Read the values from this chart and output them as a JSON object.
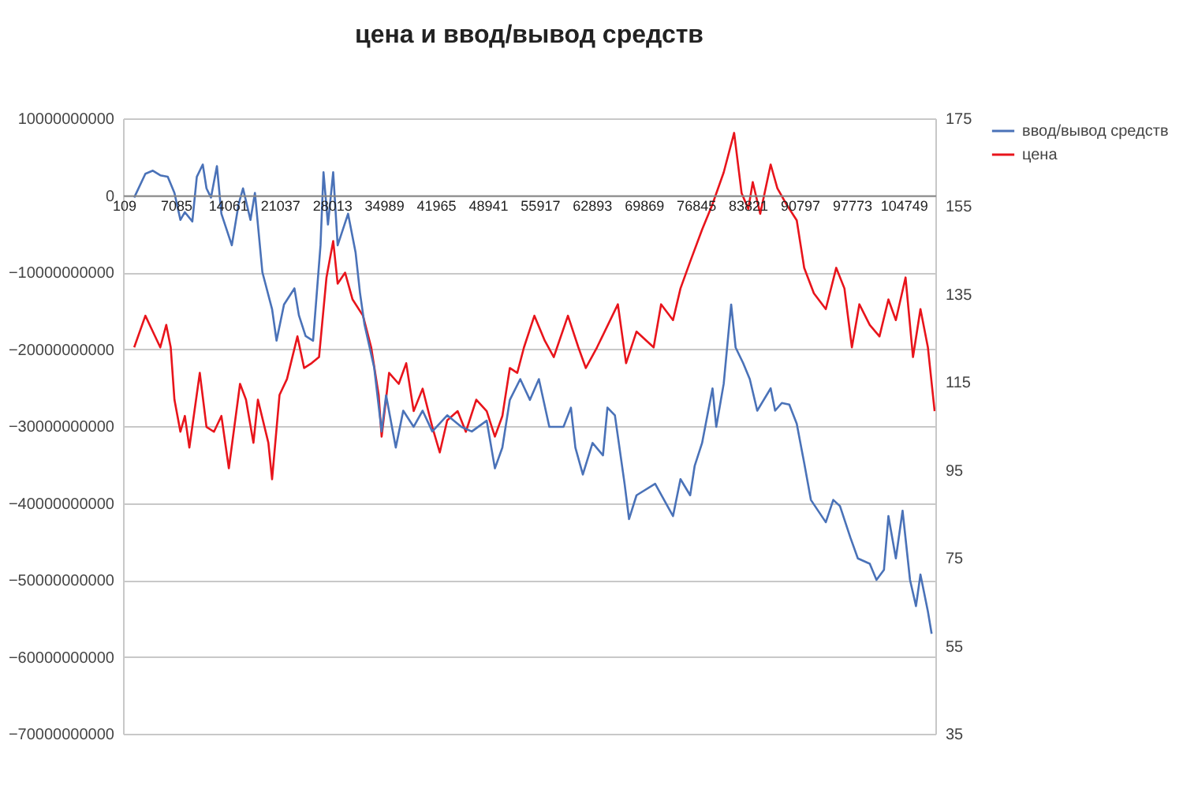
{
  "chart_data": {
    "type": "line",
    "title": "цена и ввод/вывод средств",
    "xlim": [
      1,
      109000
    ],
    "xticks": [
      109,
      7085,
      14061,
      21037,
      28013,
      34989,
      41965,
      48941,
      55917,
      62893,
      69869,
      76845,
      83821,
      90797,
      97773,
      104749
    ],
    "ylim": [
      -70000000000,
      10000000000
    ],
    "yticks": [
      10000000000,
      0,
      -10000000000,
      -20000000000,
      -30000000000,
      -40000000000,
      -50000000000,
      -60000000000,
      -70000000000
    ],
    "y2lim": [
      35,
      175
    ],
    "y2ticks": [
      35,
      55,
      75,
      95,
      115,
      135,
      155,
      175
    ],
    "grid": "y",
    "legend": "right",
    "series": [
      {
        "name": "ввод/вывод средств",
        "color": "#4a72b8",
        "x": [
          1500,
          3000,
          4000,
          5000,
          6000,
          6900,
          7700,
          8300,
          9300,
          9900,
          10700,
          11200,
          11800,
          12600,
          13200,
          14600,
          15500,
          16100,
          17100,
          17700,
          18700,
          20000,
          20600,
          21600,
          23000,
          23600,
          24500,
          25500,
          26500,
          26900,
          27500,
          28200,
          28800,
          30200,
          31200,
          31800,
          32400,
          33700,
          34700,
          35300,
          36600,
          37600,
          39000,
          40200,
          41500,
          43500,
          45400,
          46800,
          48800,
          49900,
          50900,
          51900,
          53300,
          54600,
          55800,
          57200,
          59100,
          60100,
          60700,
          61700,
          63000,
          64400,
          65000,
          66000,
          67300,
          67900,
          68900,
          71400,
          73800,
          74800,
          76100,
          76700,
          77700,
          79100,
          79600,
          80600,
          81200,
          81600,
          82200,
          83200,
          84100,
          85100,
          86900,
          87500,
          88400,
          89400,
          90400,
          91400,
          92300,
          94300,
          95300,
          96200,
          97600,
          98600,
          100200,
          101100,
          102100,
          102700,
          103700,
          104600,
          105600,
          106400,
          107000,
          108000,
          108500
        ],
        "values": [
          -300000000,
          2800000000,
          3200000000,
          2600000000,
          2400000000,
          300000000,
          -3200000000,
          -2200000000,
          -3400000000,
          2400000000,
          4000000000,
          900000000,
          -300000000,
          3800000000,
          -2400000000,
          -6500000000,
          -1200000000,
          900000000,
          -3200000000,
          300000000,
          -10000000000,
          -14800000000,
          -18900000000,
          -14200000000,
          -12100000000,
          -15600000000,
          -18300000000,
          -18900000000,
          -6500000000,
          3000000000,
          -3800000000,
          3000000000,
          -6500000000,
          -2400000000,
          -7400000000,
          -12700000000,
          -16800000000,
          -22400000000,
          -30700000000,
          -26000000000,
          -32800000000,
          -28000000000,
          -30100000000,
          -28000000000,
          -30700000000,
          -28600000000,
          -30100000000,
          -30700000000,
          -29300000000,
          -35500000000,
          -32800000000,
          -26600000000,
          -23900000000,
          -26600000000,
          -23900000000,
          -30100000000,
          -30100000000,
          -27600000000,
          -32800000000,
          -36300000000,
          -32200000000,
          -33800000000,
          -27600000000,
          -28600000000,
          -37500000000,
          -42100000000,
          -39000000000,
          -37500000000,
          -41700000000,
          -36900000000,
          -39000000000,
          -35200000000,
          -32200000000,
          -25100000000,
          -30100000000,
          -24500000000,
          -18300000000,
          -14200000000,
          -19800000000,
          -21800000000,
          -23900000000,
          -28000000000,
          -25100000000,
          -28000000000,
          -27000000000,
          -27200000000,
          -29700000000,
          -34800000000,
          -39600000000,
          -42500000000,
          -39600000000,
          -40400000000,
          -44500000000,
          -47200000000,
          -47900000000,
          -50000000000,
          -48700000000,
          -41700000000,
          -47200000000,
          -41000000000,
          -50000000000,
          -53400000000,
          -49300000000,
          -54100000000,
          -57000000000
        ]
      },
      {
        "name": "цена",
        "color": "#e8141b",
        "axis": "y2",
        "x": [
          1500,
          3000,
          4000,
          5000,
          5800,
          6400,
          6900,
          7700,
          8300,
          8900,
          10300,
          11200,
          12200,
          13200,
          14200,
          15700,
          16500,
          17500,
          18100,
          19500,
          20000,
          21000,
          22000,
          23400,
          24300,
          25300,
          26300,
          27300,
          28200,
          28800,
          29800,
          30800,
          32200,
          33300,
          34300,
          34700,
          35700,
          37000,
          38000,
          39000,
          40200,
          41500,
          42500,
          43500,
          44900,
          46000,
          47400,
          48800,
          49900,
          50900,
          51900,
          52900,
          53800,
          55200,
          56600,
          57800,
          59700,
          61100,
          62100,
          63600,
          66400,
          67500,
          68900,
          71200,
          72200,
          73800,
          74800,
          76100,
          77700,
          79100,
          80600,
          82000,
          83000,
          83900,
          84500,
          85500,
          86900,
          87800,
          89000,
          90400,
          91400,
          92700,
          94300,
          95700,
          96800,
          97800,
          98800,
          100200,
          101500,
          102700,
          103700,
          105000,
          106000,
          107000,
          108000,
          108900
        ],
        "values": [
          122.9,
          130.1,
          126.5,
          122.9,
          128.0,
          122.9,
          111.0,
          103.7,
          107.3,
          100.1,
          117.1,
          104.8,
          103.7,
          107.3,
          95.4,
          114.6,
          111.0,
          101.2,
          111.0,
          101.2,
          92.9,
          112.1,
          115.7,
          125.4,
          118.2,
          119.3,
          120.7,
          138.8,
          147.1,
          137.4,
          139.9,
          133.8,
          130.1,
          122.9,
          112.1,
          102.6,
          117.1,
          114.6,
          119.3,
          108.4,
          113.5,
          104.8,
          99.0,
          106.3,
          108.4,
          103.7,
          111.0,
          108.4,
          102.6,
          107.3,
          118.2,
          117.1,
          122.9,
          130.1,
          124.4,
          120.7,
          130.1,
          122.9,
          118.2,
          122.9,
          132.7,
          119.3,
          126.5,
          122.9,
          132.7,
          129.1,
          136.3,
          142.4,
          149.7,
          155.5,
          162.7,
          171.7,
          158.0,
          154.4,
          160.5,
          153.3,
          164.5,
          159.1,
          155.5,
          151.8,
          141.0,
          135.2,
          131.6,
          141.0,
          136.3,
          122.9,
          132.7,
          128.0,
          125.4,
          133.8,
          129.1,
          138.8,
          120.7,
          131.6,
          122.9,
          108.4
        ]
      }
    ]
  }
}
